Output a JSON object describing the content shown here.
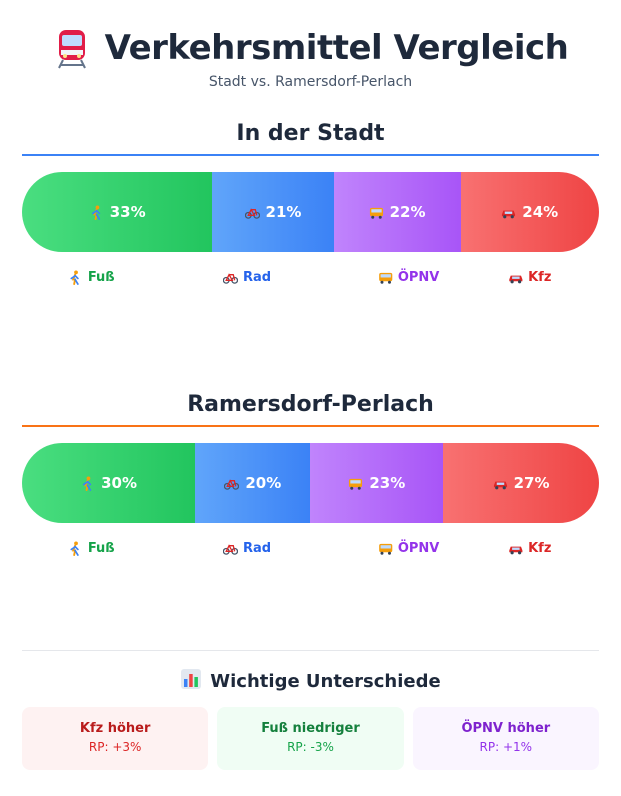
{
  "header": {
    "title": "Verkehrsmittel Vergleich",
    "subtitle": "Stadt vs. Ramersdorf-Perlach",
    "icon": "tram-icon"
  },
  "chart_data": [
    {
      "type": "bar",
      "subtype": "stacked-horizontal-100",
      "title": "In der Stadt",
      "categories": [
        "Fuß",
        "Rad",
        "ÖPNV",
        "Kfz"
      ],
      "values": [
        33,
        21,
        22,
        24
      ],
      "labels": [
        "33%",
        "21%",
        "22%",
        "24%"
      ],
      "colors": [
        "#22c55e",
        "#3b82f6",
        "#a855f7",
        "#ef4444"
      ],
      "icons": [
        "walking-icon",
        "bicycle-icon",
        "bus-icon",
        "car-icon"
      ]
    },
    {
      "type": "bar",
      "subtype": "stacked-horizontal-100",
      "title": "Ramersdorf-Perlach",
      "categories": [
        "Fuß",
        "Rad",
        "ÖPNV",
        "Kfz"
      ],
      "values": [
        30,
        20,
        23,
        27
      ],
      "labels": [
        "30%",
        "20%",
        "23%",
        "27%"
      ],
      "colors": [
        "#22c55e",
        "#3b82f6",
        "#a855f7",
        "#ef4444"
      ],
      "icons": [
        "walking-icon",
        "bicycle-icon",
        "bus-icon",
        "car-icon"
      ]
    }
  ],
  "differences": {
    "title": "Wichtige Unterschiede",
    "icon": "bar-chart-icon",
    "cards": [
      {
        "title": "Kfz höher",
        "value": "RP: +3%",
        "color": "#dc2626"
      },
      {
        "title": "Fuß niedriger",
        "value": "RP: -3%",
        "color": "#16a34a"
      },
      {
        "title": "ÖPNV höher",
        "value": "RP: +1%",
        "color": "#9333ea"
      }
    ]
  }
}
